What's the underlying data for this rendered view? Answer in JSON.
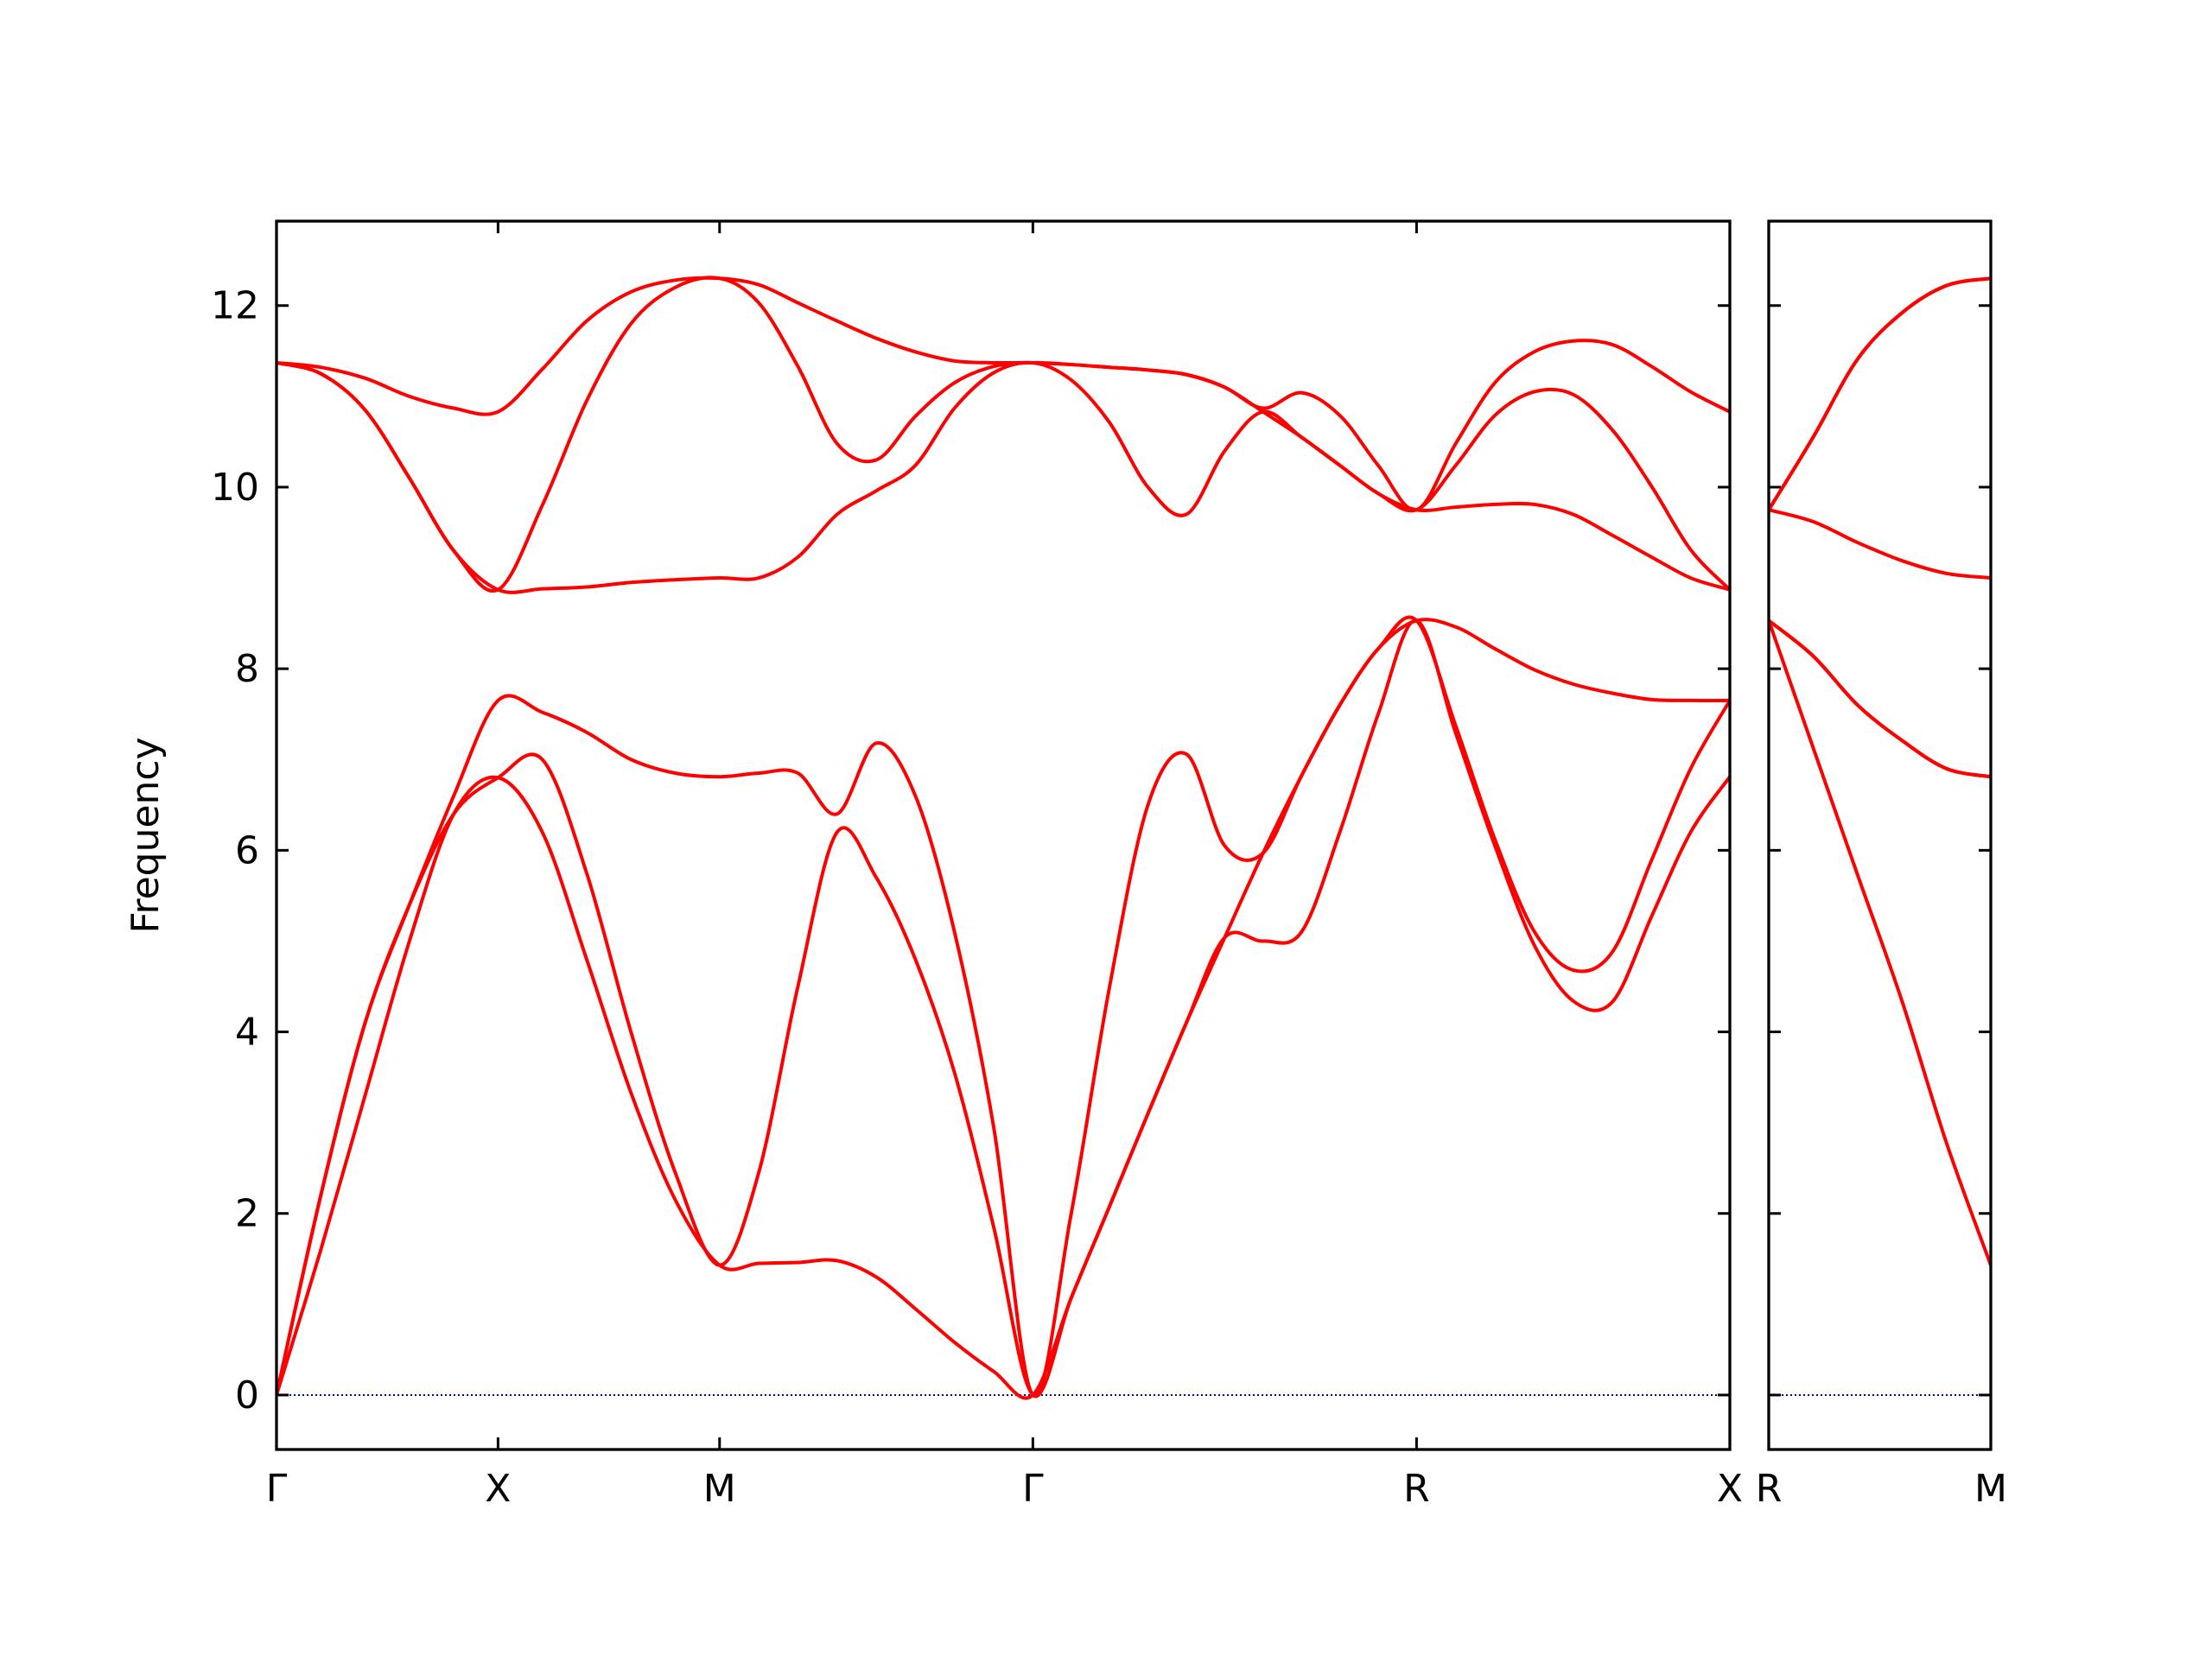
{
  "chart_data": [
    {
      "type": "line",
      "ylabel": "Frequency",
      "x": [
        0,
        0.1,
        0.2,
        0.3,
        0.4,
        0.5,
        0.6,
        0.7,
        0.8,
        0.9,
        1.0,
        1.0884,
        1.1768,
        1.2652,
        1.3536,
        1.4419,
        1.5303,
        1.6187,
        1.7071,
        1.7937,
        1.8803,
        1.9669,
        2.0535,
        2.1401,
        2.2267,
        2.3133,
        2.3999,
        2.4865,
        2.5731,
        2.6615,
        2.7499,
        2.8383,
        2.9267,
        3.015,
        3.1034,
        3.1918,
        3.2802
      ],
      "series": [
        {
          "color": "#ff0000",
          "values": [
            0,
            1.6,
            3.3,
            5.0,
            6.4,
            6.8,
            6.2,
            4.8,
            3.33,
            2.15,
            1.43,
            1.45,
            1.46,
            1.48,
            1.3,
            0.95,
            0.58,
            0.26,
            0,
            1.07,
            2.08,
            3.1,
            4.1,
            5.04,
            5.0,
            5.1,
            6.2,
            7.5,
            8.53,
            7.29,
            6.05,
            4.96,
            4.34,
            4.33,
            5.27,
            6.2,
            6.81
          ]
        },
        {
          "color": "#ff0000",
          "values": [
            0,
            2.2,
            4.1,
            5.4,
            6.4,
            6.8,
            7.0,
            5.75,
            4.0,
            2.45,
            1.43,
            2.45,
            4.5,
            6.2,
            5.7,
            4.8,
            3.55,
            1.85,
            0,
            1.07,
            2.08,
            3.1,
            4.1,
            5.04,
            5.97,
            6.82,
            7.6,
            8.22,
            8.53,
            7.37,
            6.12,
            5.11,
            4.68,
            4.88,
            5.89,
            6.9,
            7.65
          ]
        },
        {
          "color": "#ff0000",
          "values": [
            0,
            2.2,
            4.1,
            5.4,
            6.6,
            7.65,
            7.52,
            7.3,
            7.0,
            6.85,
            6.81,
            6.85,
            6.85,
            6.4,
            7.18,
            6.6,
            5.1,
            2.95,
            0,
            2.0,
            4.5,
            6.5,
            7.06,
            6.05,
            5.97,
            6.82,
            7.6,
            8.22,
            8.53,
            8.46,
            8.22,
            7.99,
            7.83,
            7.73,
            7.66,
            7.65,
            7.65
          ]
        },
        {
          "color": "#ff0000",
          "values": [
            11.37,
            11.25,
            10.85,
            10.1,
            9.3,
            8.87,
            8.88,
            8.9,
            8.95,
            8.98,
            9.0,
            9.0,
            9.23,
            9.7,
            9.96,
            10.24,
            10.87,
            11.26,
            11.37,
            11.18,
            10.71,
            10.0,
            9.7,
            10.4,
            10.83,
            10.55,
            10.24,
            9.93,
            9.75,
            9.78,
            9.81,
            9.81,
            9.7,
            9.47,
            9.23,
            9.0,
            8.87
          ]
        },
        {
          "color": "#ff0000",
          "values": [
            11.37,
            11.25,
            10.85,
            10.1,
            9.3,
            8.87,
            9.8,
            10.95,
            11.8,
            12.2,
            12.3,
            12.03,
            11.33,
            10.48,
            10.3,
            10.78,
            11.15,
            11.33,
            11.37,
            11.35,
            11.32,
            11.29,
            11.24,
            11.1,
            10.83,
            10.55,
            10.24,
            9.93,
            9.75,
            10.24,
            10.79,
            11.05,
            11.02,
            10.63,
            10.01,
            9.31,
            8.87
          ]
        },
        {
          "color": "#ff0000",
          "values": [
            11.37,
            11.32,
            11.2,
            11.0,
            10.87,
            10.83,
            11.3,
            11.83,
            12.15,
            12.28,
            12.3,
            12.23,
            12.03,
            11.83,
            11.64,
            11.49,
            11.39,
            11.37,
            11.37,
            11.35,
            11.32,
            11.29,
            11.24,
            11.1,
            10.87,
            11.04,
            10.79,
            10.24,
            9.75,
            10.48,
            11.15,
            11.49,
            11.61,
            11.57,
            11.33,
            11.05,
            10.83
          ]
        }
      ],
      "xlim": [
        0,
        3.2802
      ],
      "xticks": [
        {
          "value": 0,
          "label": "Γ"
        },
        {
          "value": 0.5,
          "label": "X"
        },
        {
          "value": 1.0,
          "label": "M"
        },
        {
          "value": 1.7071,
          "label": "Γ"
        },
        {
          "value": 2.5731,
          "label": "R"
        },
        {
          "value": 3.2802,
          "label": "X"
        }
      ],
      "ylim": [
        -0.6,
        12.93
      ],
      "yticks": [
        0,
        2,
        4,
        6,
        8,
        10,
        12
      ],
      "ytick_labels": true,
      "hlines": [
        0
      ],
      "hline_color": "#0000aa"
    },
    {
      "type": "line",
      "x": [
        0,
        0.1,
        0.2,
        0.3,
        0.4,
        0.5
      ],
      "series": [
        {
          "color": "#ff0000",
          "values": [
            8.53,
            7.13,
            5.73,
            4.34,
            2.78,
            1.43
          ]
        },
        {
          "color": "#ff0000",
          "values": [
            8.53,
            8.14,
            7.6,
            7.21,
            6.9,
            6.81
          ]
        },
        {
          "color": "#ff0000",
          "values": [
            8.53,
            8.14,
            7.6,
            7.21,
            6.9,
            6.81
          ]
        },
        {
          "color": "#ff0000",
          "values": [
            9.75,
            9.62,
            9.39,
            9.19,
            9.05,
            9.0
          ]
        },
        {
          "color": "#ff0000",
          "values": [
            9.75,
            10.55,
            11.41,
            11.92,
            12.22,
            12.3
          ]
        },
        {
          "color": "#ff0000",
          "values": [
            9.75,
            10.55,
            11.41,
            11.92,
            12.22,
            12.3
          ]
        }
      ],
      "xlim": [
        0,
        0.5
      ],
      "xticks": [
        {
          "value": 0,
          "label": "R"
        },
        {
          "value": 0.5,
          "label": "M"
        }
      ],
      "ylim": [
        -0.6,
        12.93
      ],
      "yticks": [
        0,
        2,
        4,
        6,
        8,
        10,
        12
      ],
      "ytick_labels": false,
      "hlines": [
        0
      ],
      "hline_color": "#0000aa"
    }
  ]
}
